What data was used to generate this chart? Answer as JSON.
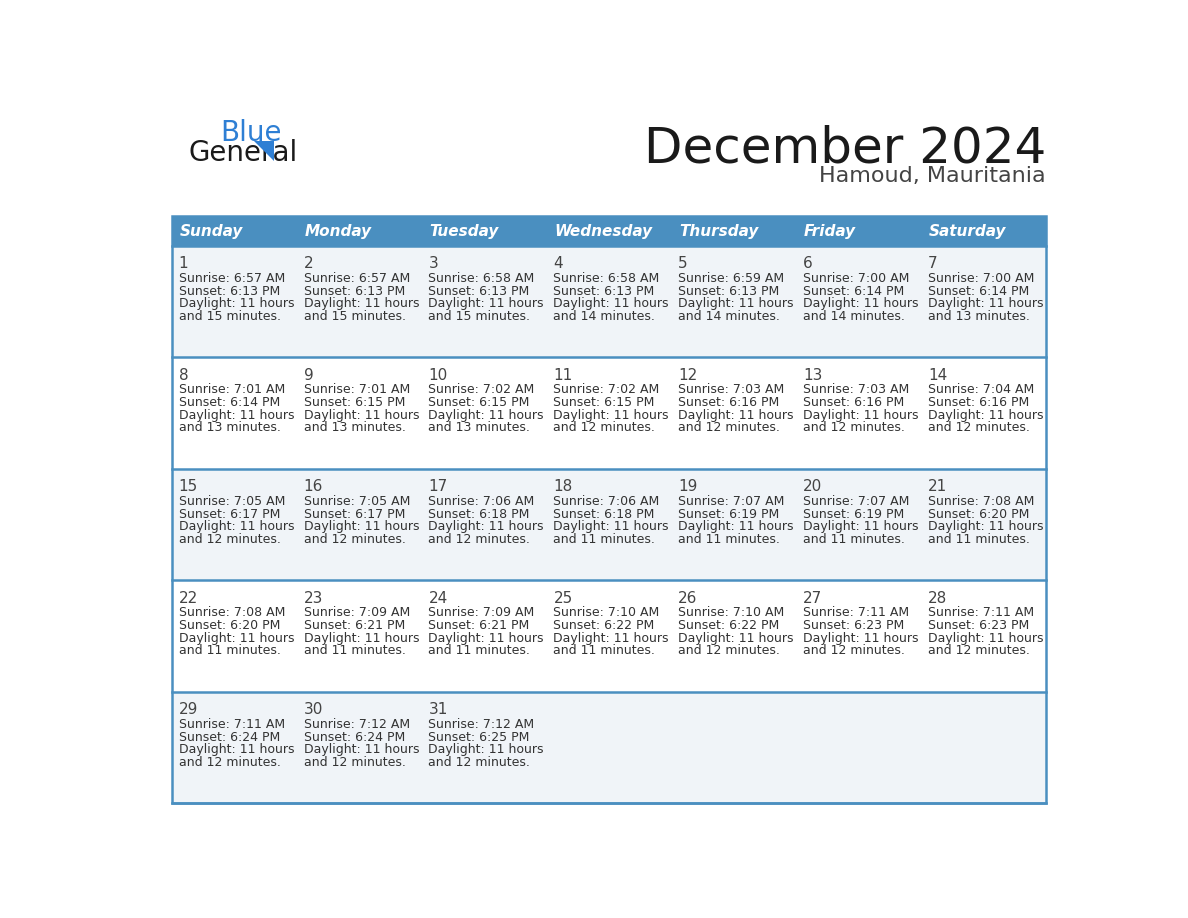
{
  "title": "December 2024",
  "subtitle": "Hamoud, Mauritania",
  "header_color": "#4a8fc0",
  "header_text_color": "#ffffff",
  "border_color": "#4a8fc0",
  "text_color": "#333333",
  "day_num_color": "#444444",
  "bg_odd": "#f0f4f8",
  "bg_even": "#ffffff",
  "days_of_week": [
    "Sunday",
    "Monday",
    "Tuesday",
    "Wednesday",
    "Thursday",
    "Friday",
    "Saturday"
  ],
  "weeks": [
    [
      {
        "day": 1,
        "sunrise": "6:57 AM",
        "sunset": "6:13 PM",
        "daylight": "11 hours",
        "minutes": "and 15 minutes."
      },
      {
        "day": 2,
        "sunrise": "6:57 AM",
        "sunset": "6:13 PM",
        "daylight": "11 hours",
        "minutes": "and 15 minutes."
      },
      {
        "day": 3,
        "sunrise": "6:58 AM",
        "sunset": "6:13 PM",
        "daylight": "11 hours",
        "minutes": "and 15 minutes."
      },
      {
        "day": 4,
        "sunrise": "6:58 AM",
        "sunset": "6:13 PM",
        "daylight": "11 hours",
        "minutes": "and 14 minutes."
      },
      {
        "day": 5,
        "sunrise": "6:59 AM",
        "sunset": "6:13 PM",
        "daylight": "11 hours",
        "minutes": "and 14 minutes."
      },
      {
        "day": 6,
        "sunrise": "7:00 AM",
        "sunset": "6:14 PM",
        "daylight": "11 hours",
        "minutes": "and 14 minutes."
      },
      {
        "day": 7,
        "sunrise": "7:00 AM",
        "sunset": "6:14 PM",
        "daylight": "11 hours",
        "minutes": "and 13 minutes."
      }
    ],
    [
      {
        "day": 8,
        "sunrise": "7:01 AM",
        "sunset": "6:14 PM",
        "daylight": "11 hours",
        "minutes": "and 13 minutes."
      },
      {
        "day": 9,
        "sunrise": "7:01 AM",
        "sunset": "6:15 PM",
        "daylight": "11 hours",
        "minutes": "and 13 minutes."
      },
      {
        "day": 10,
        "sunrise": "7:02 AM",
        "sunset": "6:15 PM",
        "daylight": "11 hours",
        "minutes": "and 13 minutes."
      },
      {
        "day": 11,
        "sunrise": "7:02 AM",
        "sunset": "6:15 PM",
        "daylight": "11 hours",
        "minutes": "and 12 minutes."
      },
      {
        "day": 12,
        "sunrise": "7:03 AM",
        "sunset": "6:16 PM",
        "daylight": "11 hours",
        "minutes": "and 12 minutes."
      },
      {
        "day": 13,
        "sunrise": "7:03 AM",
        "sunset": "6:16 PM",
        "daylight": "11 hours",
        "minutes": "and 12 minutes."
      },
      {
        "day": 14,
        "sunrise": "7:04 AM",
        "sunset": "6:16 PM",
        "daylight": "11 hours",
        "minutes": "and 12 minutes."
      }
    ],
    [
      {
        "day": 15,
        "sunrise": "7:05 AM",
        "sunset": "6:17 PM",
        "daylight": "11 hours",
        "minutes": "and 12 minutes."
      },
      {
        "day": 16,
        "sunrise": "7:05 AM",
        "sunset": "6:17 PM",
        "daylight": "11 hours",
        "minutes": "and 12 minutes."
      },
      {
        "day": 17,
        "sunrise": "7:06 AM",
        "sunset": "6:18 PM",
        "daylight": "11 hours",
        "minutes": "and 12 minutes."
      },
      {
        "day": 18,
        "sunrise": "7:06 AM",
        "sunset": "6:18 PM",
        "daylight": "11 hours",
        "minutes": "and 11 minutes."
      },
      {
        "day": 19,
        "sunrise": "7:07 AM",
        "sunset": "6:19 PM",
        "daylight": "11 hours",
        "minutes": "and 11 minutes."
      },
      {
        "day": 20,
        "sunrise": "7:07 AM",
        "sunset": "6:19 PM",
        "daylight": "11 hours",
        "minutes": "and 11 minutes."
      },
      {
        "day": 21,
        "sunrise": "7:08 AM",
        "sunset": "6:20 PM",
        "daylight": "11 hours",
        "minutes": "and 11 minutes."
      }
    ],
    [
      {
        "day": 22,
        "sunrise": "7:08 AM",
        "sunset": "6:20 PM",
        "daylight": "11 hours",
        "minutes": "and 11 minutes."
      },
      {
        "day": 23,
        "sunrise": "7:09 AM",
        "sunset": "6:21 PM",
        "daylight": "11 hours",
        "minutes": "and 11 minutes."
      },
      {
        "day": 24,
        "sunrise": "7:09 AM",
        "sunset": "6:21 PM",
        "daylight": "11 hours",
        "minutes": "and 11 minutes."
      },
      {
        "day": 25,
        "sunrise": "7:10 AM",
        "sunset": "6:22 PM",
        "daylight": "11 hours",
        "minutes": "and 11 minutes."
      },
      {
        "day": 26,
        "sunrise": "7:10 AM",
        "sunset": "6:22 PM",
        "daylight": "11 hours",
        "minutes": "and 12 minutes."
      },
      {
        "day": 27,
        "sunrise": "7:11 AM",
        "sunset": "6:23 PM",
        "daylight": "11 hours",
        "minutes": "and 12 minutes."
      },
      {
        "day": 28,
        "sunrise": "7:11 AM",
        "sunset": "6:23 PM",
        "daylight": "11 hours",
        "minutes": "and 12 minutes."
      }
    ],
    [
      {
        "day": 29,
        "sunrise": "7:11 AM",
        "sunset": "6:24 PM",
        "daylight": "11 hours",
        "minutes": "and 12 minutes."
      },
      {
        "day": 30,
        "sunrise": "7:12 AM",
        "sunset": "6:24 PM",
        "daylight": "11 hours",
        "minutes": "and 12 minutes."
      },
      {
        "day": 31,
        "sunrise": "7:12 AM",
        "sunset": "6:25 PM",
        "daylight": "11 hours",
        "minutes": "and 12 minutes."
      },
      null,
      null,
      null,
      null
    ]
  ],
  "logo_text1": "General",
  "logo_text2": "Blue",
  "logo_color1": "#1a1a1a",
  "logo_color2": "#2e7fd4",
  "title_fontsize": 36,
  "subtitle_fontsize": 16,
  "header_fontsize": 11,
  "day_num_fontsize": 11,
  "cell_text_fontsize": 9
}
